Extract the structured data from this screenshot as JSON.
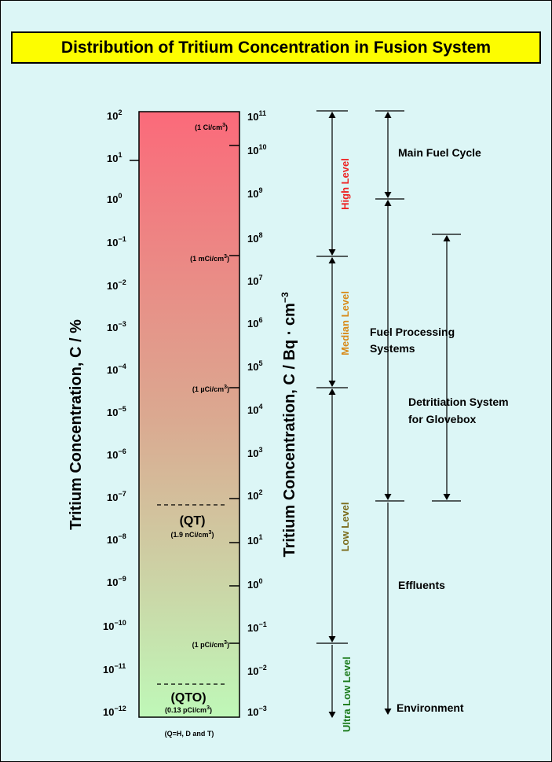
{
  "title": "Distribution of Tritium Concentration in Fusion System",
  "axes": {
    "left_label": "Tritium Concentration, C / %",
    "right_label_main": "Tritium Concentration, C / Bq · cm",
    "right_label_exp": "−3"
  },
  "ticks": [
    {
      "left_base": "10",
      "left_exp": "2",
      "right_base": "10",
      "right_exp": "11"
    },
    {
      "left_base": "10",
      "left_exp": "1",
      "right_base": "10",
      "right_exp": "10"
    },
    {
      "left_base": "10",
      "left_exp": "0",
      "right_base": "10",
      "right_exp": "9"
    },
    {
      "left_base": "10",
      "left_exp": "−1",
      "right_base": "10",
      "right_exp": "8"
    },
    {
      "left_base": "10",
      "left_exp": "−2",
      "right_base": "10",
      "right_exp": "7"
    },
    {
      "left_base": "10",
      "left_exp": "−3",
      "right_base": "10",
      "right_exp": "6"
    },
    {
      "left_base": "10",
      "left_exp": "−4",
      "right_base": "10",
      "right_exp": "5"
    },
    {
      "left_base": "10",
      "left_exp": "−5",
      "right_base": "10",
      "right_exp": "4"
    },
    {
      "left_base": "10",
      "left_exp": "−6",
      "right_base": "10",
      "right_exp": "3"
    },
    {
      "left_base": "10",
      "left_exp": "−7",
      "right_base": "10",
      "right_exp": "2"
    },
    {
      "left_base": "10",
      "left_exp": "−8",
      "right_base": "10",
      "right_exp": "1"
    },
    {
      "left_base": "10",
      "left_exp": "−9",
      "right_base": "10",
      "right_exp": "0"
    },
    {
      "left_base": "10",
      "left_exp": "−10",
      "right_base": "10",
      "right_exp": "−1"
    },
    {
      "left_base": "10",
      "left_exp": "−11",
      "right_base": "10",
      "right_exp": "−2"
    },
    {
      "left_base": "10",
      "left_exp": "−12",
      "right_base": "10",
      "right_exp": "−3"
    }
  ],
  "column_labels": {
    "ci": "(1 Ci/cm",
    "mci": "(1 mCi/cm",
    "uci": "(1 µCi/cm",
    "pci": "(1 pCi/cm",
    "cube": "3",
    "close": ")",
    "qt": "(QT)",
    "qt_sub": "(1.9 nCi/cm",
    "qto": "(QTO)",
    "qto_sub": "(0.13 pCi/cm",
    "note": "(Q=H, D and T)"
  },
  "levels": [
    {
      "name": "High Level",
      "color": "#ee2222"
    },
    {
      "name": "Median Level",
      "color": "#d88a18"
    },
    {
      "name": "Low Level",
      "color": "#7a6a1a"
    },
    {
      "name": "Ultra Low Level",
      "color": "#1a7a1a"
    }
  ],
  "systems": {
    "main_fuel": "Main Fuel Cycle",
    "fuel_proc_1": "Fuel Processing",
    "fuel_proc_2": "Systems",
    "detrit_1": "Detritiation System",
    "detrit_2": "for Glovebox",
    "effluents": "Effluents",
    "environment": "Environment"
  },
  "colors": {
    "bar_top": "#fb6a7a",
    "bar_bottom": "#bff8b8",
    "title_bg": "#fdfd00",
    "page_bg": "#dcf6f6"
  }
}
